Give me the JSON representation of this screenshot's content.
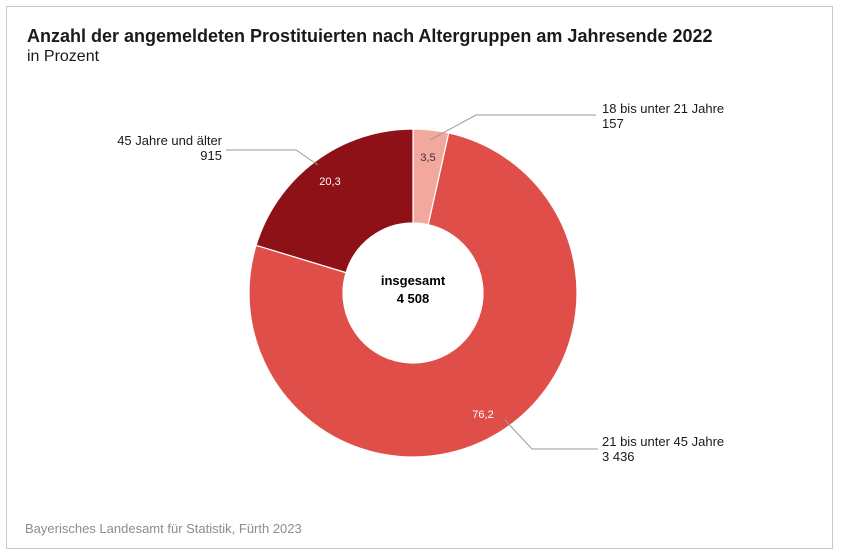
{
  "header": {
    "title": "Anzahl der angemeldeten Prostituierten nach Altergruppen am Jahresende 2022",
    "subtitle": "in Prozent"
  },
  "footer": {
    "source": "Bayerisches Landesamt für Statistik, Fürth 2023"
  },
  "chart_data": {
    "type": "pie",
    "donut": true,
    "title": "Anzahl der angemeldeten Prostituierten nach Altergruppen am Jahresende 2022",
    "subtitle": "in Prozent",
    "center": {
      "label": "insgesamt",
      "value": "4 508"
    },
    "slices": [
      {
        "name": "18 bis unter 21 Jahre",
        "count": "157",
        "percent": 3.5,
        "percent_label": "3,5",
        "color": "#f2a89d"
      },
      {
        "name": "21 bis unter 45 Jahre",
        "count": "3 436",
        "percent": 76.2,
        "percent_label": "76,2",
        "color": "#e04e4a"
      },
      {
        "name": "45 Jahre und älter",
        "count": "915",
        "percent": 20.3,
        "percent_label": "20,3",
        "color": "#8f1118"
      }
    ]
  }
}
